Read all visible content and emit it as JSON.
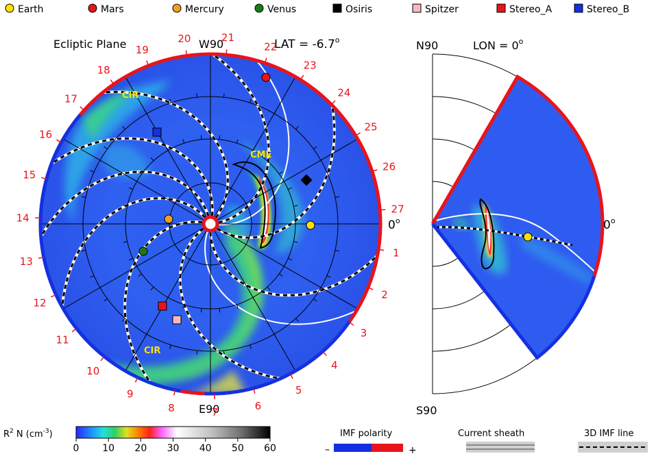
{
  "legend": [
    {
      "name": "Earth",
      "shape": "circle",
      "color": "#ffe100"
    },
    {
      "name": "Mars",
      "shape": "circle",
      "color": "#e8141b"
    },
    {
      "name": "Mercury",
      "shape": "circle",
      "color": "#f0a020"
    },
    {
      "name": "Venus",
      "shape": "circle",
      "color": "#1a7a1a"
    },
    {
      "name": "Osiris",
      "shape": "square",
      "color": "#000000"
    },
    {
      "name": "Spitzer",
      "shape": "square",
      "color": "#f7b8c0"
    },
    {
      "name": "Stereo_A",
      "shape": "square",
      "color": "#e8141b"
    },
    {
      "name": "Stereo_B",
      "shape": "square",
      "color": "#1430e0"
    }
  ],
  "ecliptic": {
    "title": "Ecliptic Plane",
    "lat_label": "LAT = -6.7",
    "lat_sup": "o",
    "top_label": "W90",
    "bottom_label": "E90",
    "right_label": "0",
    "right_sup": "o",
    "cme_label": "CME",
    "cir_label_1": "CIR",
    "cir_label_2": "CIR",
    "carrington_labels": [
      "20",
      "21",
      "22",
      "23",
      "24",
      "25",
      "26",
      "27",
      "1",
      "2",
      "3",
      "4",
      "5",
      "6",
      "7",
      "8",
      "9",
      "10",
      "11",
      "12",
      "13",
      "14",
      "15",
      "16",
      "17",
      "18",
      "19"
    ]
  },
  "meridional": {
    "top_label": "N90",
    "bottom_label": "S90",
    "lon_label": "LON = 0",
    "lon_sup": "o",
    "right_label": "0",
    "right_sup": "o"
  },
  "colorbar": {
    "label": "R",
    "label_sup": "2",
    "label_rest": " N (cm",
    "label_exp": "-3",
    "label_end": ")",
    "ticks": [
      "0",
      "10",
      "20",
      "30",
      "40",
      "50",
      "60"
    ],
    "range": [
      0,
      60
    ]
  },
  "imf": {
    "title": "IMF polarity",
    "minus": "–",
    "plus": "+",
    "neg_color": "#1430e0",
    "pos_color": "#e8141b"
  },
  "current_sheath": {
    "title": "Current sheath"
  },
  "imf_line": {
    "title": "3D IMF line"
  },
  "chart_data": {
    "type": "heatmap",
    "variable": "R2 N (cm-3)",
    "colorbar_range": [
      0,
      60
    ],
    "panels": [
      "Ecliptic Plane",
      "LON = 0"
    ],
    "ecliptic_latitude_deg": -6.7,
    "meridional_longitude_deg": 0,
    "features": [
      "CME",
      "CIR",
      "CIR"
    ],
    "objects": [
      "Earth",
      "Mars",
      "Mercury",
      "Venus",
      "Osiris",
      "Spitzer",
      "Stereo_A",
      "Stereo_B"
    ]
  }
}
